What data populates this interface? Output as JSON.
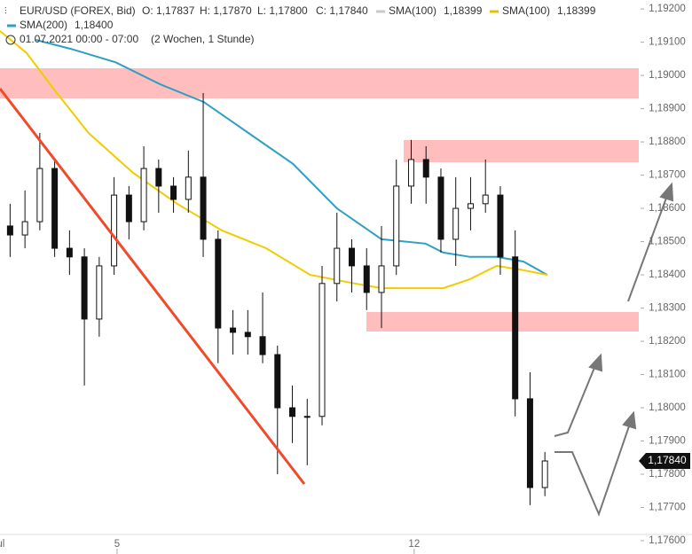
{
  "header": {
    "symbol": "EUR/USD (FOREX, Bid)",
    "open": "O: 1,17837",
    "high": "H: 1,17870",
    "low": "L: 1,17800",
    "close": "C: 1,17840",
    "legend": [
      {
        "name": "SMA(100)",
        "value": "1,18399",
        "color": "#c8c8c8"
      },
      {
        "name": "SMA(100)",
        "value": "1,18399",
        "color": "#e8c000"
      },
      {
        "name": "SMA(200)",
        "value": "1,18400",
        "color": "#2f9fc4"
      }
    ],
    "date": "01.07.2021 00:00 - 07:00",
    "period": "(2 Wochen, 1 Stunde)"
  },
  "chart_data": {
    "type": "candlestick",
    "x": [
      0.2,
      0.45,
      0.7,
      0.95,
      1.2,
      1.45,
      1.7,
      1.95,
      2.2,
      2.45,
      2.7,
      2.95,
      3.2,
      3.45,
      3.7,
      3.95,
      4.2,
      4.45,
      4.7,
      4.95,
      5.2,
      5.45,
      5.7,
      5.95,
      6.2,
      6.45,
      6.7,
      6.95,
      7.2,
      7.45,
      7.7,
      7.95,
      8.2,
      8.45,
      8.7,
      8.95,
      9.2
    ],
    "open": [
      1.18547,
      1.1852,
      1.1856,
      1.1872,
      1.1848,
      1.18454,
      1.18267,
      1.18427,
      1.1864,
      1.1856,
      1.1872,
      1.18667,
      1.18627,
      1.18694,
      1.18507,
      1.1824,
      1.18227,
      1.18214,
      1.1816,
      1.18,
      1.17974,
      1.17974,
      1.18374,
      1.1848,
      1.18427,
      1.18347,
      1.18427,
      1.18667,
      1.18747,
      1.18694,
      1.18507,
      1.186,
      1.18614,
      1.1864,
      1.18454,
      1.18027,
      1.1776
    ],
    "high": [
      1.18614,
      1.18654,
      1.18827,
      1.18747,
      1.18534,
      1.1848,
      1.18454,
      1.18694,
      1.18667,
      1.18787,
      1.18747,
      1.18694,
      1.18774,
      1.18947,
      1.18534,
      1.18294,
      1.18294,
      1.18347,
      1.18187,
      1.18067,
      1.18027,
      1.18427,
      1.18587,
      1.18507,
      1.1848,
      1.18547,
      1.18747,
      1.18806,
      1.18787,
      1.1872,
      1.18694,
      1.18694,
      1.18747,
      1.18667,
      1.18534,
      1.18107,
      1.17867
    ],
    "low": [
      1.18454,
      1.1848,
      1.18534,
      1.18454,
      1.184,
      1.18067,
      1.18214,
      1.184,
      1.18507,
      1.18534,
      1.18587,
      1.18587,
      1.18587,
      1.18454,
      1.18134,
      1.1816,
      1.1816,
      1.18134,
      1.178,
      1.17894,
      1.17827,
      1.17947,
      1.1832,
      1.18347,
      1.18294,
      1.1824,
      1.184,
      1.18614,
      1.18614,
      1.18467,
      1.18427,
      1.18534,
      1.18587,
      1.184,
      1.17974,
      1.17707,
      1.17734
    ],
    "close": [
      1.1852,
      1.1856,
      1.1872,
      1.1848,
      1.18454,
      1.18267,
      1.18427,
      1.1864,
      1.1856,
      1.1872,
      1.18667,
      1.18627,
      1.18694,
      1.18507,
      1.1824,
      1.18227,
      1.18214,
      1.1816,
      1.18,
      1.17974,
      1.17974,
      1.18374,
      1.1848,
      1.18427,
      1.18347,
      1.18427,
      1.18667,
      1.18747,
      1.18694,
      1.18507,
      1.186,
      1.18614,
      1.1864,
      1.18454,
      1.18027,
      1.1776,
      1.1784
    ],
    "series": [
      {
        "name": "SMA(200)",
        "color": "#2f9fc4",
        "x": [
          0.63,
          1.22,
          1.97,
          2.72,
          3.46,
          4.21,
          4.96,
          5.7,
          6.45,
          7.19,
          7.49,
          7.94,
          8.39,
          8.84,
          9.24
        ],
        "values": [
          1.19107,
          1.1908,
          1.1904,
          1.18974,
          1.1892,
          1.18827,
          1.18734,
          1.186,
          1.18507,
          1.18494,
          1.18467,
          1.18454,
          1.18454,
          1.1844,
          1.184
        ]
      },
      {
        "name": "SMA(100)",
        "color": "#f0cc00",
        "x": [
          0.03,
          0.48,
          0.93,
          1.52,
          2.27,
          3.01,
          3.76,
          4.51,
          5.25,
          6.0,
          6.45,
          7.04,
          7.49,
          7.94,
          8.39,
          8.84,
          9.24
        ],
        "values": [
          1.19134,
          1.19067,
          1.1896,
          1.18827,
          1.18707,
          1.18614,
          1.18534,
          1.1848,
          1.184,
          1.18374,
          1.1836,
          1.1836,
          1.1836,
          1.18387,
          1.18427,
          1.18414,
          1.184
        ]
      }
    ],
    "xlim": [
      0.03,
      10.78
    ],
    "xticks": [
      {
        "value": 0,
        "label": "Jul"
      },
      {
        "value": 2,
        "label": "5"
      },
      {
        "value": 7,
        "label": "12"
      }
    ],
    "ylim": [
      1.1756,
      1.19227
    ],
    "yticks": [
      {
        "value": 1.176,
        "label": "1,17600"
      },
      {
        "value": 1.177,
        "label": "1,17700"
      },
      {
        "value": 1.178,
        "label": "1,17800"
      },
      {
        "value": 1.179,
        "label": "1,17900"
      },
      {
        "value": 1.18,
        "label": "1,18000"
      },
      {
        "value": 1.181,
        "label": "1,18100"
      },
      {
        "value": 1.182,
        "label": "1,18200"
      },
      {
        "value": 1.183,
        "label": "1,18300"
      },
      {
        "value": 1.184,
        "label": "1,18400"
      },
      {
        "value": 1.185,
        "label": "1,18500"
      },
      {
        "value": 1.186,
        "label": "1,18600"
      },
      {
        "value": 1.187,
        "label": "1,18700"
      },
      {
        "value": 1.188,
        "label": "1,18800"
      },
      {
        "value": 1.189,
        "label": "1,18900"
      },
      {
        "value": 1.19,
        "label": "1,19000"
      },
      {
        "value": 1.191,
        "label": "1,19100"
      },
      {
        "value": 1.192,
        "label": "1,19200"
      }
    ],
    "current_price": {
      "value": 1.1784,
      "label": "1,17840"
    }
  }
}
